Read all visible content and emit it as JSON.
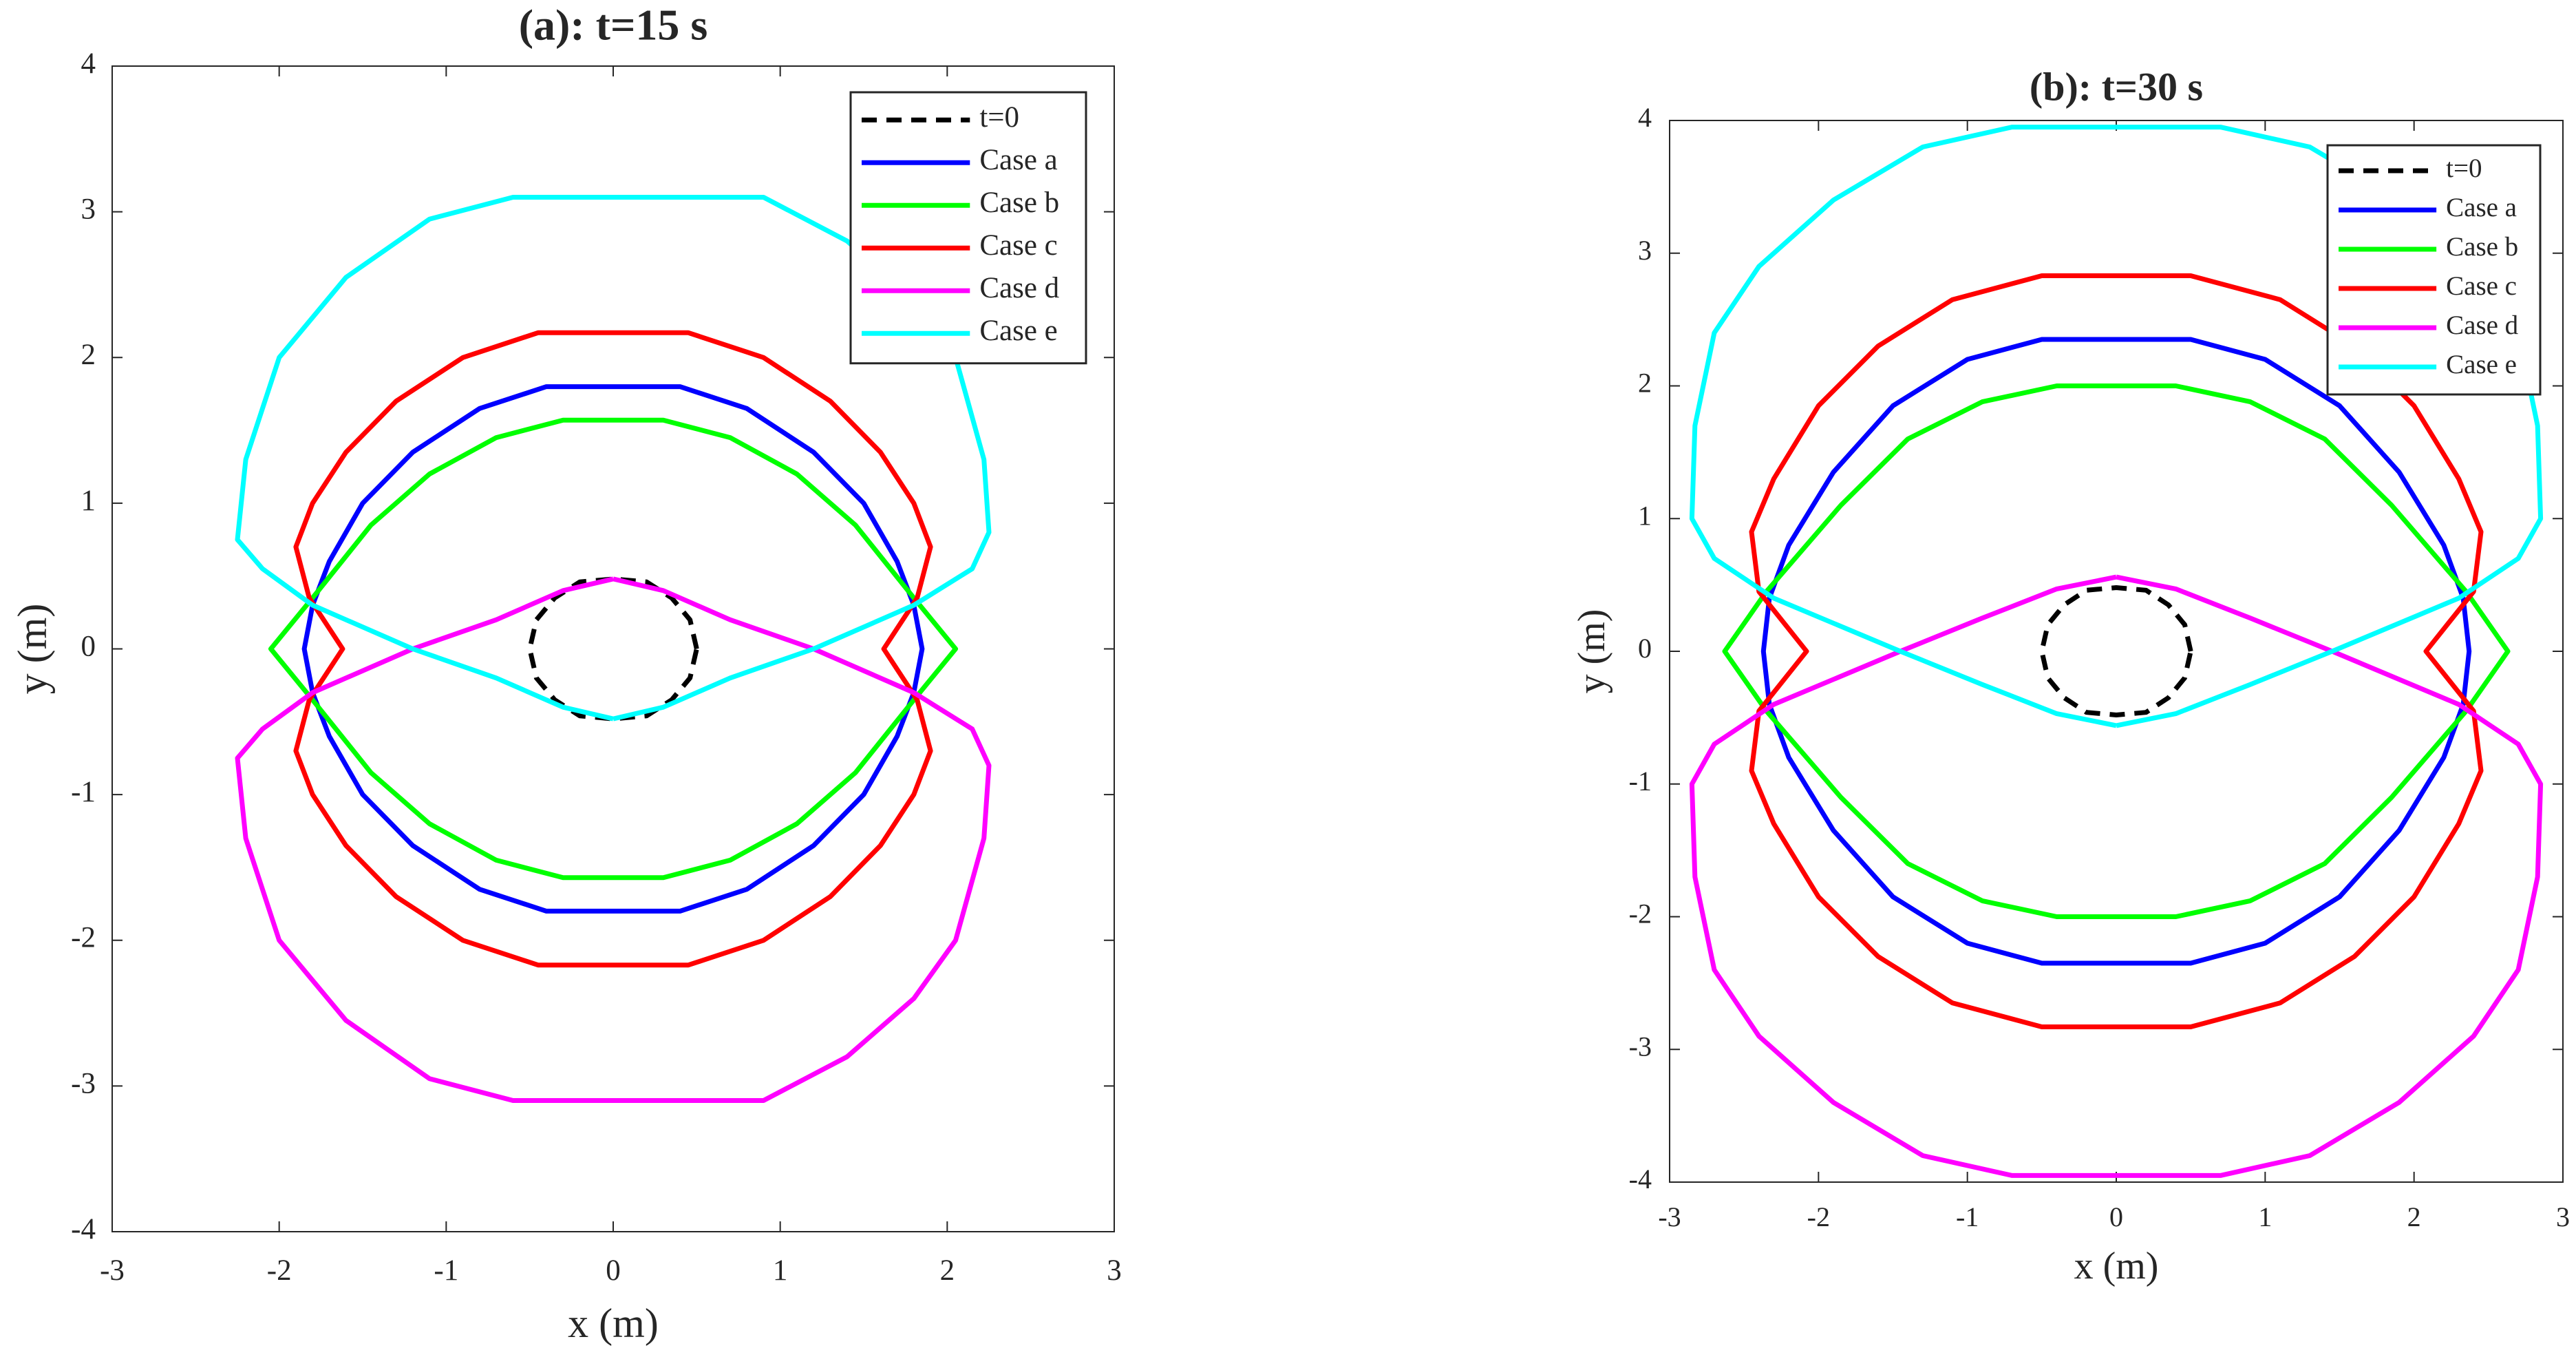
{
  "chart_data": [
    {
      "type": "line",
      "title": "(a): t=15 s",
      "x_label": "x (m)",
      "y_label": "y (m)",
      "xlim": [
        -3,
        3
      ],
      "ylim": [
        -4,
        4
      ],
      "xticks": [
        -3,
        -2,
        -1,
        0,
        1,
        2,
        3
      ],
      "yticks": [
        -4,
        -3,
        -2,
        -1,
        0,
        1,
        2,
        3,
        4
      ],
      "legend": "upper right",
      "series": [
        {
          "name": "t=0",
          "color": "#000000",
          "dashed": true,
          "x": [
            0.5,
            0.46,
            0.35,
            0.2,
            0,
            -0.2,
            -0.35,
            -0.46,
            -0.5,
            -0.46,
            -0.35,
            -0.2,
            0,
            0.2,
            0.35,
            0.46,
            0.5
          ],
          "values": [
            0,
            0.2,
            0.35,
            0.46,
            0.48,
            0.46,
            0.35,
            0.2,
            0,
            -0.2,
            -0.35,
            -0.46,
            -0.48,
            -0.46,
            -0.35,
            -0.2,
            0
          ]
        },
        {
          "name": "Case a",
          "color": "#0000ff",
          "x": [
            0,
            0.4,
            0.8,
            1.2,
            1.5,
            1.7,
            1.8,
            1.85,
            1.8,
            1.7,
            1.5,
            1.2,
            0.8,
            0.4,
            -0.4,
            -0.8,
            -1.2,
            -1.5,
            -1.7,
            -1.8,
            -1.85,
            -1.8,
            -1.7,
            -1.5,
            -1.2,
            -0.8,
            -0.4,
            0
          ],
          "values": [
            1.8,
            1.8,
            1.65,
            1.35,
            1.0,
            0.6,
            0.3,
            0,
            -0.3,
            -0.6,
            -1.0,
            -1.35,
            -1.65,
            -1.8,
            -1.8,
            -1.65,
            -1.35,
            -1.0,
            -0.6,
            -0.3,
            0,
            0.3,
            0.6,
            1.0,
            1.35,
            1.65,
            1.8,
            1.8
          ]
        },
        {
          "name": "Case b",
          "color": "#00ff00",
          "x": [
            0,
            0.3,
            0.7,
            1.1,
            1.45,
            1.8,
            2.05,
            1.8,
            1.45,
            1.1,
            0.7,
            0.3,
            -0.3,
            -0.7,
            -1.1,
            -1.45,
            -1.8,
            -2.05,
            -1.8,
            -1.45,
            -1.1,
            -0.7,
            -0.3,
            0
          ],
          "values": [
            1.57,
            1.57,
            1.45,
            1.2,
            0.85,
            0.35,
            0,
            -0.35,
            -0.85,
            -1.2,
            -1.45,
            -1.57,
            -1.57,
            -1.45,
            -1.2,
            -0.85,
            -0.35,
            0,
            0.35,
            0.85,
            1.2,
            1.45,
            1.57,
            1.57
          ]
        },
        {
          "name": "Case c",
          "color": "#ff0000",
          "x": [
            0,
            0.45,
            0.9,
            1.3,
            1.6,
            1.8,
            1.9,
            1.82,
            1.62,
            1.82,
            1.9,
            1.8,
            1.6,
            1.3,
            0.9,
            0.45,
            -0.45,
            -0.9,
            -1.3,
            -1.6,
            -1.8,
            -1.9,
            -1.82,
            -1.62,
            -1.82,
            -1.9,
            -1.8,
            -1.6,
            -1.3,
            -0.9,
            -0.45,
            0
          ],
          "values": [
            2.17,
            2.17,
            2.0,
            1.7,
            1.35,
            1.0,
            0.7,
            0.35,
            0,
            -0.35,
            -0.7,
            -1.0,
            -1.35,
            -1.7,
            -2.0,
            -2.17,
            -2.17,
            -2.0,
            -1.7,
            -1.35,
            -1.0,
            -0.7,
            -0.35,
            0,
            0.35,
            0.7,
            1.0,
            1.35,
            1.7,
            2.0,
            2.17,
            2.17
          ]
        },
        {
          "name": "Case d",
          "color": "#ff00ff",
          "x": [
            0,
            0.3,
            0.7,
            1.2,
            1.8,
            2.15,
            2.25,
            2.22,
            2.05,
            1.8,
            1.4,
            0.9,
            0.3,
            -0.6,
            -1.1,
            -1.6,
            -2.0,
            -2.2,
            -2.25,
            -2.1,
            -1.8,
            -1.2,
            -0.7,
            -0.3,
            0
          ],
          "values": [
            0.48,
            0.4,
            0.2,
            0,
            -0.3,
            -0.55,
            -0.8,
            -1.3,
            -2.0,
            -2.4,
            -2.8,
            -3.1,
            -3.1,
            -3.1,
            -2.95,
            -2.55,
            -2.0,
            -1.3,
            -0.75,
            -0.55,
            -0.3,
            0,
            0.2,
            0.4,
            0.48
          ]
        },
        {
          "name": "Case e",
          "color": "#00ffff",
          "x": [
            0,
            0.3,
            0.7,
            1.2,
            1.8,
            2.15,
            2.25,
            2.22,
            2.05,
            1.8,
            1.4,
            0.9,
            0.3,
            -0.6,
            -1.1,
            -1.6,
            -2.0,
            -2.2,
            -2.25,
            -2.1,
            -1.8,
            -1.2,
            -0.7,
            -0.3,
            0
          ],
          "values": [
            -0.48,
            -0.4,
            -0.2,
            0,
            0.3,
            0.55,
            0.8,
            1.3,
            2.0,
            2.4,
            2.8,
            3.1,
            3.1,
            3.1,
            2.95,
            2.55,
            2.0,
            1.3,
            0.75,
            0.55,
            0.3,
            0,
            -0.2,
            -0.4,
            -0.48
          ]
        }
      ]
    },
    {
      "type": "line",
      "title": "(b): t=30 s",
      "x_label": "x (m)",
      "y_label": "y (m)",
      "xlim": [
        -3,
        3
      ],
      "ylim": [
        -4,
        4
      ],
      "xticks": [
        -3,
        -2,
        -1,
        0,
        1,
        2,
        3
      ],
      "yticks": [
        -4,
        -3,
        -2,
        -1,
        0,
        1,
        2,
        3,
        4
      ],
      "legend": "upper right",
      "series": [
        {
          "name": "t=0",
          "color": "#000000",
          "dashed": true,
          "x": [
            0.5,
            0.46,
            0.35,
            0.2,
            0,
            -0.2,
            -0.35,
            -0.46,
            -0.5,
            -0.46,
            -0.35,
            -0.2,
            0,
            0.2,
            0.35,
            0.46,
            0.5
          ],
          "values": [
            0,
            0.2,
            0.35,
            0.46,
            0.48,
            0.46,
            0.35,
            0.2,
            0,
            -0.2,
            -0.35,
            -0.46,
            -0.48,
            -0.46,
            -0.35,
            -0.2,
            0
          ]
        },
        {
          "name": "Case a",
          "color": "#0000ff",
          "x": [
            0,
            0.5,
            1.0,
            1.5,
            1.9,
            2.2,
            2.33,
            2.37,
            2.33,
            2.2,
            1.9,
            1.5,
            1.0,
            0.5,
            -0.5,
            -1.0,
            -1.5,
            -1.9,
            -2.2,
            -2.33,
            -2.37,
            -2.33,
            -2.2,
            -1.9,
            -1.5,
            -1.0,
            -0.5,
            0
          ],
          "values": [
            2.35,
            2.35,
            2.2,
            1.85,
            1.35,
            0.8,
            0.4,
            0,
            -0.4,
            -0.8,
            -1.35,
            -1.85,
            -2.2,
            -2.35,
            -2.35,
            -2.2,
            -1.85,
            -1.35,
            -0.8,
            -0.4,
            0,
            0.4,
            0.8,
            1.35,
            1.85,
            2.2,
            2.35,
            2.35
          ]
        },
        {
          "name": "Case b",
          "color": "#00ff00",
          "x": [
            0,
            0.4,
            0.9,
            1.4,
            1.85,
            2.35,
            2.63,
            2.35,
            1.85,
            1.4,
            0.9,
            0.4,
            -0.4,
            -0.9,
            -1.4,
            -1.85,
            -2.35,
            -2.63,
            -2.35,
            -1.85,
            -1.4,
            -0.9,
            -0.4,
            0
          ],
          "values": [
            2.0,
            2.0,
            1.88,
            1.6,
            1.1,
            0.45,
            0,
            -0.45,
            -1.1,
            -1.6,
            -1.88,
            -2.0,
            -2.0,
            -1.88,
            -1.6,
            -1.1,
            -0.45,
            0,
            0.45,
            1.1,
            1.6,
            1.88,
            2.0,
            2.0
          ]
        },
        {
          "name": "Case c",
          "color": "#ff0000",
          "x": [
            0,
            0.5,
            1.1,
            1.6,
            2.0,
            2.3,
            2.45,
            2.4,
            2.08,
            2.4,
            2.45,
            2.3,
            2.0,
            1.6,
            1.1,
            0.5,
            -0.5,
            -1.1,
            -1.6,
            -2.0,
            -2.3,
            -2.45,
            -2.4,
            -2.08,
            -2.4,
            -2.45,
            -2.3,
            -2.0,
            -1.6,
            -1.1,
            -0.5,
            0
          ],
          "values": [
            2.83,
            2.83,
            2.65,
            2.3,
            1.85,
            1.3,
            0.9,
            0.45,
            0,
            -0.45,
            -0.9,
            -1.3,
            -1.85,
            -2.3,
            -2.65,
            -2.83,
            -2.83,
            -2.65,
            -2.3,
            -1.85,
            -1.3,
            -0.9,
            -0.45,
            0,
            0.45,
            0.9,
            1.3,
            1.85,
            2.3,
            2.65,
            2.83,
            2.83
          ]
        },
        {
          "name": "Case d",
          "color": "#ff00ff",
          "x": [
            0,
            0.4,
            0.9,
            1.45,
            2.3,
            2.7,
            2.85,
            2.83,
            2.7,
            2.4,
            1.9,
            1.3,
            0.7,
            -0.7,
            -1.3,
            -1.9,
            -2.4,
            -2.7,
            -2.83,
            -2.85,
            -2.7,
            -2.3,
            -1.45,
            -0.9,
            -0.4,
            0
          ],
          "values": [
            0.56,
            0.47,
            0.25,
            0,
            -0.4,
            -0.7,
            -1.0,
            -1.7,
            -2.4,
            -2.9,
            -3.4,
            -3.8,
            -3.95,
            -3.95,
            -3.8,
            -3.4,
            -2.9,
            -2.4,
            -1.7,
            -1.0,
            -0.7,
            -0.4,
            0,
            0.25,
            0.47,
            0.56
          ]
        },
        {
          "name": "Case e",
          "color": "#00ffff",
          "x": [
            0,
            0.4,
            0.9,
            1.45,
            2.3,
            2.7,
            2.85,
            2.83,
            2.7,
            2.4,
            1.9,
            1.3,
            0.7,
            -0.7,
            -1.3,
            -1.9,
            -2.4,
            -2.7,
            -2.83,
            -2.85,
            -2.7,
            -2.3,
            -1.45,
            -0.9,
            -0.4,
            0
          ],
          "values": [
            -0.56,
            -0.47,
            -0.25,
            0,
            0.4,
            0.7,
            1.0,
            1.7,
            2.4,
            2.9,
            3.4,
            3.8,
            3.95,
            3.95,
            3.8,
            3.4,
            2.9,
            2.4,
            1.7,
            1.0,
            0.7,
            0.4,
            0,
            -0.25,
            -0.47,
            -0.56
          ]
        }
      ]
    }
  ]
}
